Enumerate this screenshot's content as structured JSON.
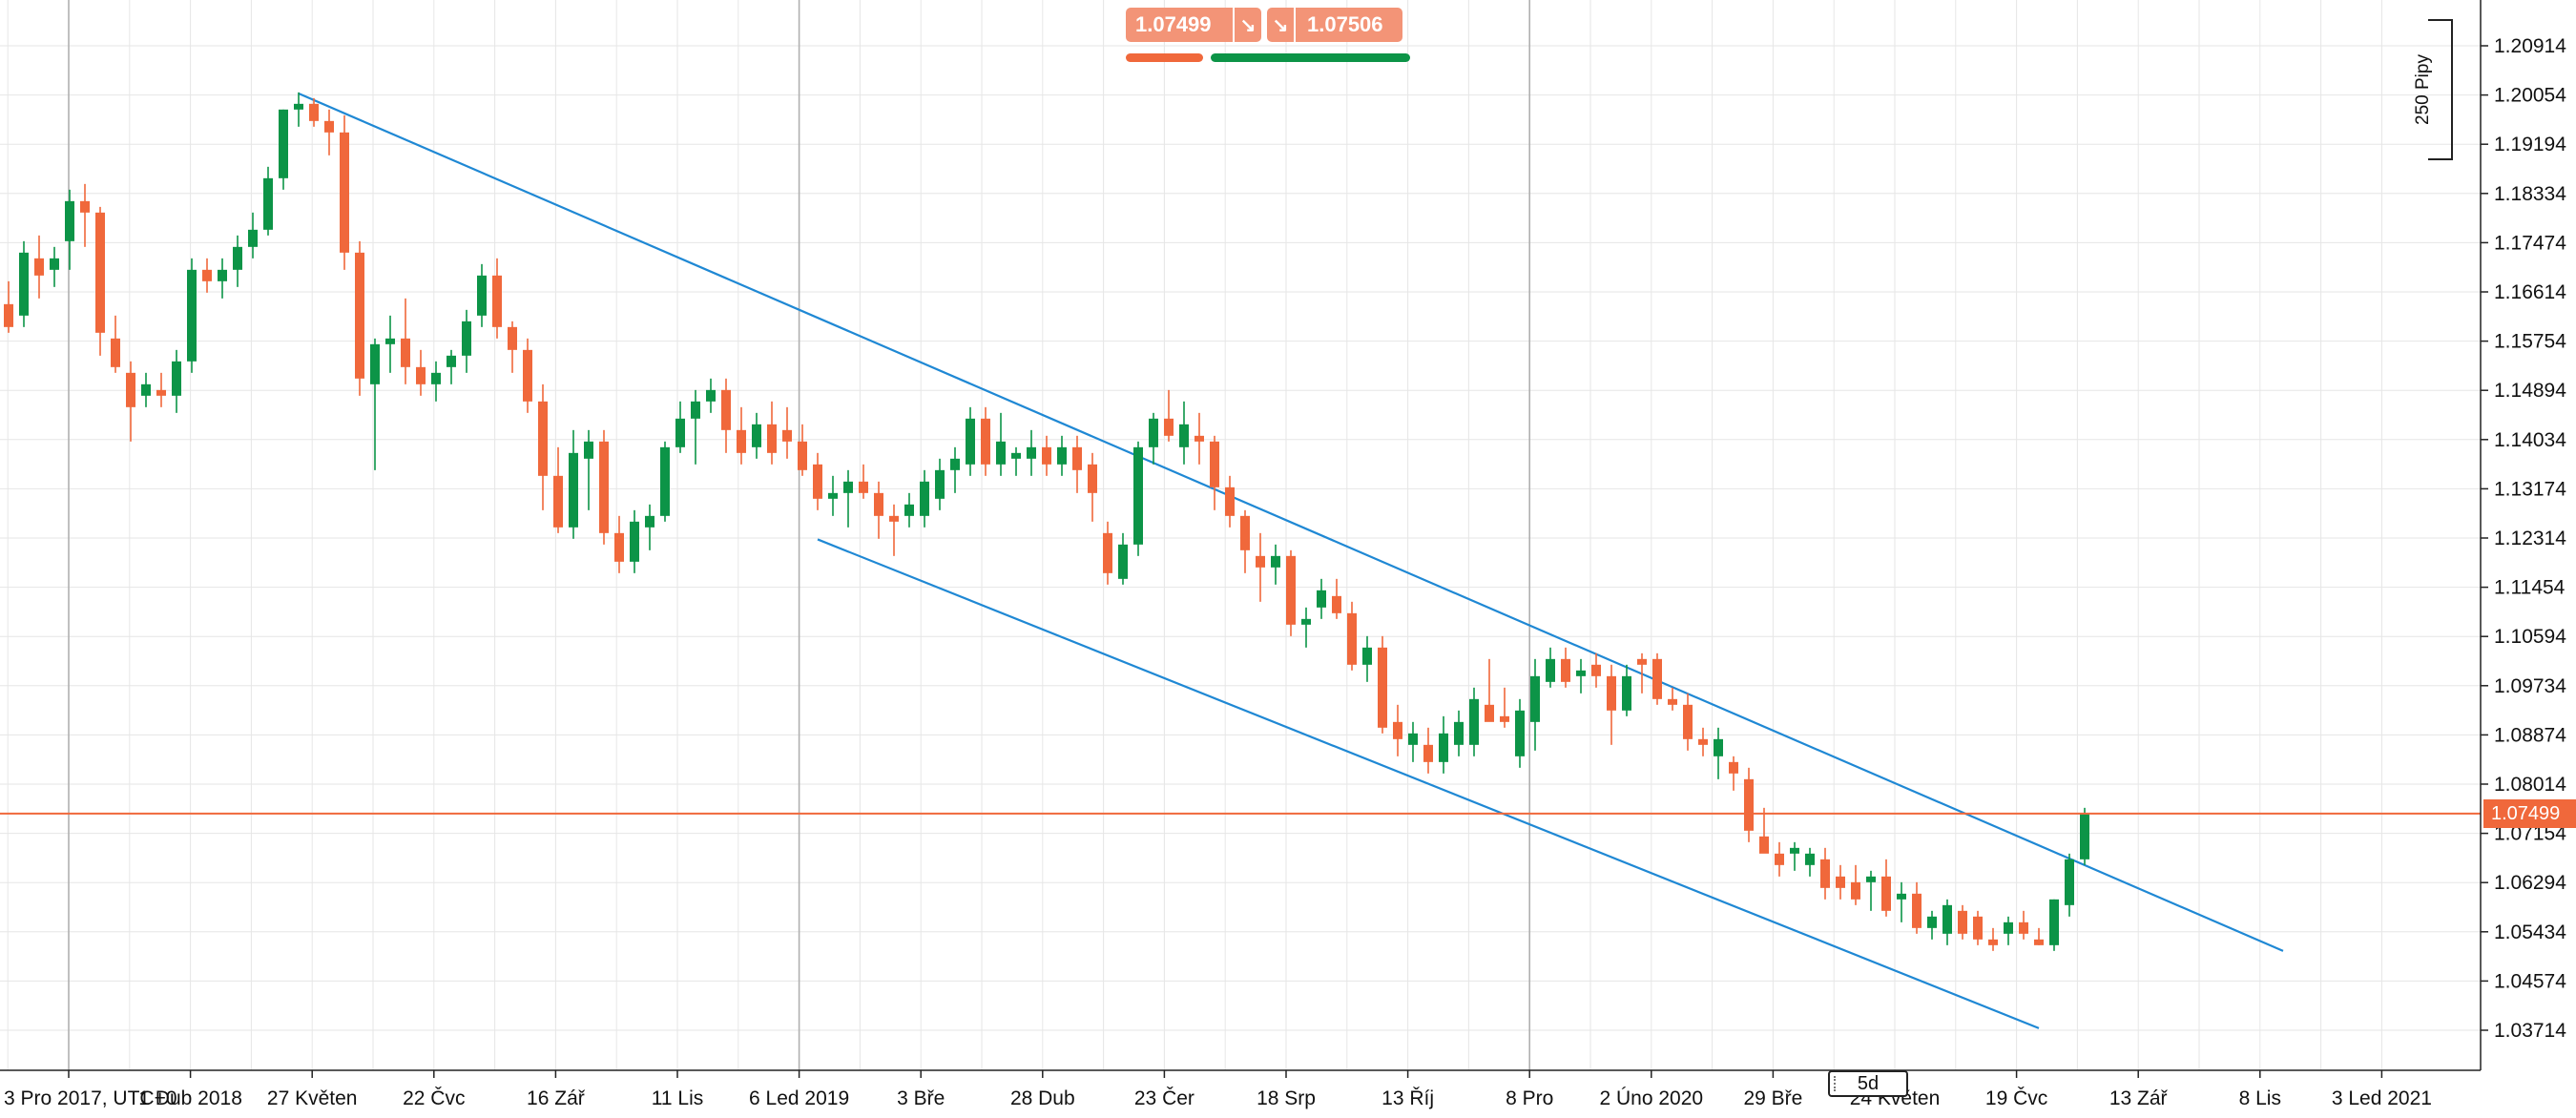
{
  "colors": {
    "up": "#0c9447",
    "down": "#f0683b",
    "trendline": "#1f88d4",
    "price_line": "#f0683b",
    "grid": "#e6e6e6",
    "major_grid": "#b0b0b0",
    "chip": "#f39477"
  },
  "quote": {
    "sell_price": "1.07499",
    "buy_price": "1.07506",
    "sell_icon": "arrow-down-right-icon",
    "buy_icon": "arrow-down-right-icon"
  },
  "sentiment": {
    "sell_fraction": 0.28,
    "buy_fraction": 0.72
  },
  "timeframe": "5d",
  "pips_label": "250 Pipy",
  "current_price": "1.07499",
  "chart_data": {
    "type": "candlestick",
    "symbol_timezone": "UTC+0",
    "ylim": [
      1.03,
      1.216
    ],
    "y_ticks": [
      "1.20914",
      "1.20054",
      "1.19194",
      "1.18334",
      "1.17474",
      "1.16614",
      "1.15754",
      "1.14894",
      "1.14034",
      "1.13174",
      "1.12314",
      "1.11454",
      "1.10594",
      "1.09734",
      "1.08874",
      "1.08014",
      "1.07154",
      "1.06294",
      "1.05434",
      "1.04574",
      "1.03714"
    ],
    "x_ticks": [
      "3 Pro 2017, UTC+0",
      "1 Dub 2018",
      "27 Květen",
      "22 Čvc",
      "16 Zář",
      "11 Lis",
      "6 Led 2019",
      "3 Bře",
      "28 Dub",
      "23 Čer",
      "18 Srp",
      "13 Říj",
      "8 Pro",
      "2 Úno 2020",
      "29 Bře",
      "24 Květen",
      "19 Čvc",
      "13 Zář",
      "8 Lis",
      "3 Led 2021"
    ],
    "current_price": 1.07499,
    "candles": [
      [
        1.164,
        1.168,
        1.159,
        1.16
      ],
      [
        1.162,
        1.175,
        1.16,
        1.173
      ],
      [
        1.172,
        1.176,
        1.165,
        1.169
      ],
      [
        1.17,
        1.174,
        1.167,
        1.172
      ],
      [
        1.175,
        1.184,
        1.17,
        1.182
      ],
      [
        1.182,
        1.185,
        1.174,
        1.18
      ],
      [
        1.18,
        1.181,
        1.155,
        1.159
      ],
      [
        1.158,
        1.162,
        1.152,
        1.153
      ],
      [
        1.152,
        1.154,
        1.14,
        1.146
      ],
      [
        1.148,
        1.152,
        1.146,
        1.15
      ],
      [
        1.149,
        1.152,
        1.146,
        1.148
      ],
      [
        1.148,
        1.156,
        1.145,
        1.154
      ],
      [
        1.154,
        1.172,
        1.152,
        1.17
      ],
      [
        1.17,
        1.172,
        1.166,
        1.168
      ],
      [
        1.168,
        1.172,
        1.165,
        1.17
      ],
      [
        1.17,
        1.176,
        1.167,
        1.174
      ],
      [
        1.174,
        1.18,
        1.172,
        1.177
      ],
      [
        1.177,
        1.188,
        1.176,
        1.186
      ],
      [
        1.186,
        1.198,
        1.184,
        1.198
      ],
      [
        1.198,
        1.201,
        1.195,
        1.199
      ],
      [
        1.199,
        1.2,
        1.195,
        1.196
      ],
      [
        1.196,
        1.198,
        1.19,
        1.194
      ],
      [
        1.194,
        1.197,
        1.17,
        1.173
      ],
      [
        1.173,
        1.175,
        1.148,
        1.151
      ],
      [
        1.15,
        1.158,
        1.135,
        1.157
      ],
      [
        1.157,
        1.162,
        1.152,
        1.158
      ],
      [
        1.158,
        1.165,
        1.15,
        1.153
      ],
      [
        1.153,
        1.156,
        1.148,
        1.15
      ],
      [
        1.15,
        1.154,
        1.147,
        1.152
      ],
      [
        1.153,
        1.156,
        1.15,
        1.155
      ],
      [
        1.155,
        1.163,
        1.152,
        1.161
      ],
      [
        1.162,
        1.171,
        1.16,
        1.169
      ],
      [
        1.169,
        1.172,
        1.158,
        1.16
      ],
      [
        1.16,
        1.161,
        1.152,
        1.156
      ],
      [
        1.156,
        1.158,
        1.145,
        1.147
      ],
      [
        1.147,
        1.15,
        1.128,
        1.134
      ],
      [
        1.134,
        1.139,
        1.124,
        1.125
      ],
      [
        1.125,
        1.142,
        1.123,
        1.138
      ],
      [
        1.137,
        1.142,
        1.128,
        1.14
      ],
      [
        1.14,
        1.142,
        1.122,
        1.124
      ],
      [
        1.124,
        1.127,
        1.117,
        1.119
      ],
      [
        1.119,
        1.128,
        1.117,
        1.126
      ],
      [
        1.125,
        1.129,
        1.121,
        1.127
      ],
      [
        1.127,
        1.14,
        1.126,
        1.139
      ],
      [
        1.139,
        1.147,
        1.138,
        1.144
      ],
      [
        1.144,
        1.149,
        1.136,
        1.147
      ],
      [
        1.147,
        1.151,
        1.145,
        1.149
      ],
      [
        1.149,
        1.151,
        1.138,
        1.142
      ],
      [
        1.142,
        1.146,
        1.136,
        1.138
      ],
      [
        1.139,
        1.145,
        1.137,
        1.143
      ],
      [
        1.143,
        1.147,
        1.136,
        1.138
      ],
      [
        1.142,
        1.146,
        1.137,
        1.14
      ],
      [
        1.14,
        1.143,
        1.134,
        1.135
      ],
      [
        1.136,
        1.138,
        1.128,
        1.13
      ],
      [
        1.13,
        1.134,
        1.127,
        1.131
      ],
      [
        1.131,
        1.135,
        1.125,
        1.133
      ],
      [
        1.133,
        1.136,
        1.13,
        1.131
      ],
      [
        1.131,
        1.133,
        1.123,
        1.127
      ],
      [
        1.127,
        1.129,
        1.12,
        1.126
      ],
      [
        1.127,
        1.131,
        1.125,
        1.129
      ],
      [
        1.127,
        1.135,
        1.125,
        1.133
      ],
      [
        1.13,
        1.137,
        1.128,
        1.135
      ],
      [
        1.135,
        1.139,
        1.131,
        1.137
      ],
      [
        1.136,
        1.146,
        1.134,
        1.144
      ],
      [
        1.144,
        1.146,
        1.134,
        1.136
      ],
      [
        1.136,
        1.145,
        1.134,
        1.14
      ],
      [
        1.137,
        1.139,
        1.134,
        1.138
      ],
      [
        1.137,
        1.142,
        1.134,
        1.139
      ],
      [
        1.139,
        1.141,
        1.134,
        1.136
      ],
      [
        1.136,
        1.141,
        1.134,
        1.139
      ],
      [
        1.139,
        1.141,
        1.131,
        1.135
      ],
      [
        1.136,
        1.138,
        1.126,
        1.131
      ],
      [
        1.124,
        1.126,
        1.115,
        1.117
      ],
      [
        1.116,
        1.124,
        1.115,
        1.122
      ],
      [
        1.122,
        1.14,
        1.12,
        1.139
      ],
      [
        1.139,
        1.145,
        1.136,
        1.144
      ],
      [
        1.144,
        1.149,
        1.14,
        1.141
      ],
      [
        1.139,
        1.147,
        1.136,
        1.143
      ],
      [
        1.141,
        1.145,
        1.136,
        1.14
      ],
      [
        1.14,
        1.141,
        1.128,
        1.132
      ],
      [
        1.132,
        1.134,
        1.125,
        1.127
      ],
      [
        1.127,
        1.128,
        1.117,
        1.121
      ],
      [
        1.12,
        1.124,
        1.112,
        1.118
      ],
      [
        1.118,
        1.122,
        1.115,
        1.12
      ],
      [
        1.12,
        1.121,
        1.106,
        1.108
      ],
      [
        1.108,
        1.111,
        1.104,
        1.109
      ],
      [
        1.111,
        1.116,
        1.109,
        1.114
      ],
      [
        1.113,
        1.116,
        1.109,
        1.11
      ],
      [
        1.11,
        1.112,
        1.1,
        1.101
      ],
      [
        1.101,
        1.106,
        1.098,
        1.104
      ],
      [
        1.104,
        1.106,
        1.089,
        1.09
      ],
      [
        1.091,
        1.094,
        1.085,
        1.088
      ],
      [
        1.087,
        1.091,
        1.084,
        1.089
      ],
      [
        1.087,
        1.09,
        1.082,
        1.084
      ],
      [
        1.084,
        1.092,
        1.082,
        1.089
      ],
      [
        1.087,
        1.093,
        1.085,
        1.091
      ],
      [
        1.087,
        1.097,
        1.085,
        1.095
      ],
      [
        1.094,
        1.102,
        1.092,
        1.091
      ],
      [
        1.092,
        1.097,
        1.09,
        1.091
      ],
      [
        1.085,
        1.095,
        1.083,
        1.093
      ],
      [
        1.091,
        1.102,
        1.086,
        1.099
      ],
      [
        1.098,
        1.104,
        1.097,
        1.102
      ],
      [
        1.102,
        1.104,
        1.097,
        1.098
      ],
      [
        1.099,
        1.102,
        1.096,
        1.1
      ],
      [
        1.101,
        1.103,
        1.097,
        1.099
      ],
      [
        1.099,
        1.101,
        1.087,
        1.093
      ],
      [
        1.093,
        1.101,
        1.092,
        1.099
      ],
      [
        1.102,
        1.103,
        1.096,
        1.101
      ],
      [
        1.102,
        1.103,
        1.094,
        1.095
      ],
      [
        1.095,
        1.097,
        1.093,
        1.094
      ],
      [
        1.094,
        1.096,
        1.086,
        1.088
      ],
      [
        1.088,
        1.09,
        1.085,
        1.087
      ],
      [
        1.085,
        1.09,
        1.081,
        1.088
      ],
      [
        1.084,
        1.085,
        1.079,
        1.082
      ],
      [
        1.081,
        1.083,
        1.07,
        1.072
      ],
      [
        1.071,
        1.076,
        1.069,
        1.068
      ],
      [
        1.068,
        1.07,
        1.064,
        1.066
      ],
      [
        1.068,
        1.07,
        1.065,
        1.069
      ],
      [
        1.066,
        1.069,
        1.064,
        1.068
      ],
      [
        1.067,
        1.069,
        1.06,
        1.062
      ],
      [
        1.064,
        1.066,
        1.06,
        1.062
      ],
      [
        1.063,
        1.066,
        1.059,
        1.06
      ],
      [
        1.063,
        1.065,
        1.058,
        1.064
      ],
      [
        1.064,
        1.067,
        1.057,
        1.058
      ],
      [
        1.06,
        1.063,
        1.056,
        1.061
      ],
      [
        1.061,
        1.063,
        1.054,
        1.055
      ],
      [
        1.055,
        1.058,
        1.053,
        1.057
      ],
      [
        1.054,
        1.06,
        1.052,
        1.059
      ],
      [
        1.058,
        1.059,
        1.053,
        1.054
      ],
      [
        1.057,
        1.058,
        1.052,
        1.053
      ],
      [
        1.053,
        1.055,
        1.051,
        1.052
      ],
      [
        1.054,
        1.057,
        1.052,
        1.056
      ],
      [
        1.056,
        1.058,
        1.053,
        1.054
      ],
      [
        1.053,
        1.055,
        1.052,
        1.052
      ],
      [
        1.052,
        1.06,
        1.051,
        1.06
      ],
      [
        1.059,
        1.068,
        1.057,
        1.067
      ],
      [
        1.067,
        1.076,
        1.066,
        1.075
      ]
    ],
    "trendlines": [
      {
        "name": "upper channel line",
        "points": [
          [
            19,
            1.2008
          ],
          [
            149,
            1.051
          ]
        ]
      },
      {
        "name": "lower channel line",
        "points": [
          [
            53,
            1.1229
          ],
          [
            133,
            1.0375
          ]
        ]
      }
    ]
  }
}
